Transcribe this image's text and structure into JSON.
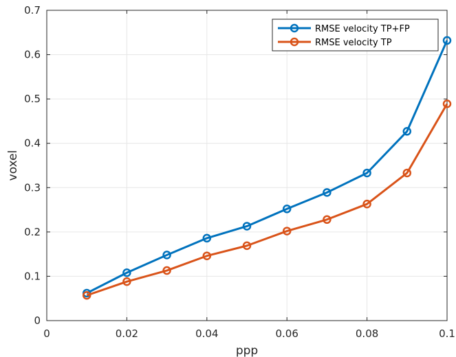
{
  "chart_data": {
    "type": "line",
    "title": "",
    "xlabel": "ppp",
    "ylabel": "voxel",
    "xlim": [
      0,
      0.1
    ],
    "ylim": [
      0,
      0.7
    ],
    "xticks": [
      0,
      0.02,
      0.04,
      0.06,
      0.08,
      0.1
    ],
    "xtick_labels": [
      "0",
      "0.02",
      "0.04",
      "0.06",
      "0.08",
      "0.1"
    ],
    "yticks": [
      0,
      0.1,
      0.2,
      0.3,
      0.4,
      0.5,
      0.6,
      0.7
    ],
    "ytick_labels": [
      "0",
      "0.1",
      "0.2",
      "0.3",
      "0.4",
      "0.5",
      "0.6",
      "0.7"
    ],
    "grid": true,
    "legend_position": "top-right",
    "x": [
      0.01,
      0.02,
      0.03,
      0.04,
      0.05,
      0.06,
      0.07,
      0.08,
      0.09,
      0.1
    ],
    "series": [
      {
        "name": "RMSE velocity TP+FP",
        "color": "#0072BD",
        "marker": "circle",
        "values": [
          0.062,
          0.108,
          0.148,
          0.186,
          0.213,
          0.252,
          0.289,
          0.333,
          0.427,
          0.632
        ]
      },
      {
        "name": "RMSE velocity TP",
        "color": "#D95319",
        "marker": "circle",
        "values": [
          0.057,
          0.088,
          0.113,
          0.146,
          0.169,
          0.202,
          0.228,
          0.263,
          0.333,
          0.489
        ]
      }
    ]
  }
}
